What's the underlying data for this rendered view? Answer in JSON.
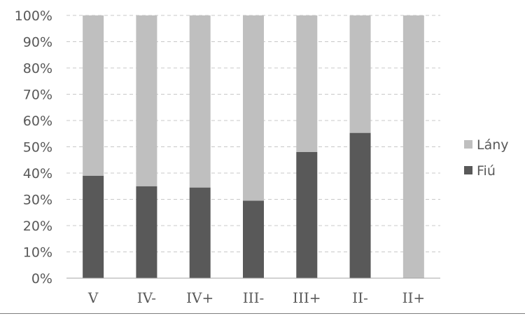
{
  "chart_data": {
    "type": "bar",
    "stacked": true,
    "percent_stacked": true,
    "categories": [
      "V",
      "IV-",
      "IV+",
      "III-",
      "III+",
      "II-",
      "II+"
    ],
    "series": [
      {
        "name": "Fiú",
        "color": "#595959",
        "values": [
          39,
          35,
          34.5,
          29.5,
          48,
          55.3,
          0
        ]
      },
      {
        "name": "Lány",
        "color": "#bfbfbf",
        "values": [
          61,
          65,
          65.5,
          70.5,
          52,
          44.7,
          100
        ]
      }
    ],
    "yticks": [
      "0%",
      "10%",
      "20%",
      "30%",
      "40%",
      "50%",
      "60%",
      "70%",
      "80%",
      "90%",
      "100%"
    ],
    "ylim": [
      0,
      100
    ],
    "grid": true,
    "legend_position": "right",
    "legend_order": [
      "Lány",
      "Fiú"
    ]
  }
}
